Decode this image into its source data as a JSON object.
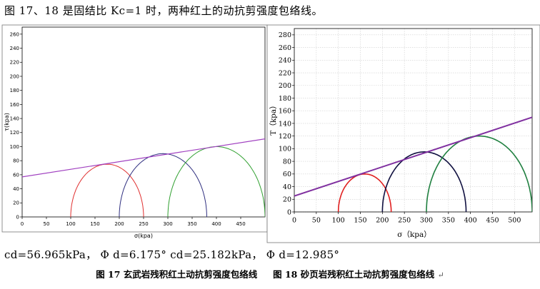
{
  "intro_text": "图 17、18 是固结比 Kc=1 时，两种红土的动抗剪强度包络线。",
  "params_text": "cd=56.965kPa， Φ d=6.175°  cd=25.182kPa， Φ d=12.985°",
  "caption": {
    "fig17": "图 17 玄武岩残积红土动抗剪强度包络线",
    "fig18": "图 18 砂页岩残积红土动抗剪强度包络线",
    "end_mark": "↵"
  },
  "chart_data": [
    {
      "type": "line",
      "xlabel": "σ(kpa)",
      "ylabel": "τ(kpa)",
      "xlim": [
        0,
        500
      ],
      "ylim": [
        0,
        270
      ],
      "xticks": [
        0,
        50,
        100,
        150,
        200,
        250,
        300,
        350,
        400,
        450
      ],
      "yticks": [
        0,
        20,
        40,
        60,
        80,
        100,
        120,
        140,
        160,
        180,
        200,
        220,
        240,
        260
      ],
      "grid": false,
      "envelope": {
        "c": 56.965,
        "phi_deg": 6.175,
        "color": "#a040c0"
      },
      "circles": [
        {
          "sigma3": 100,
          "sigma1": 250,
          "color": "#e03030"
        },
        {
          "sigma3": 200,
          "sigma1": 380,
          "color": "#303080"
        },
        {
          "sigma3": 300,
          "sigma1": 500,
          "color": "#30a030"
        }
      ]
    },
    {
      "type": "line",
      "xlabel": "σ（kpa）",
      "ylabel": "T（kpa）",
      "xlim": [
        0,
        540
      ],
      "ylim": [
        0,
        290
      ],
      "xticks": [
        0,
        50,
        100,
        150,
        200,
        250,
        300,
        350,
        400,
        450,
        500
      ],
      "yticks": [
        0,
        20,
        40,
        60,
        80,
        100,
        120,
        140,
        160,
        180,
        200,
        220,
        240,
        260,
        280
      ],
      "grid": true,
      "envelope": {
        "c": 25.182,
        "phi_deg": 12.985,
        "color": "#8030a0"
      },
      "circles": [
        {
          "sigma3": 100,
          "sigma1": 220,
          "color": "#e02020"
        },
        {
          "sigma3": 200,
          "sigma1": 390,
          "color": "#101040"
        },
        {
          "sigma3": 300,
          "sigma1": 540,
          "color": "#208040"
        }
      ]
    }
  ]
}
